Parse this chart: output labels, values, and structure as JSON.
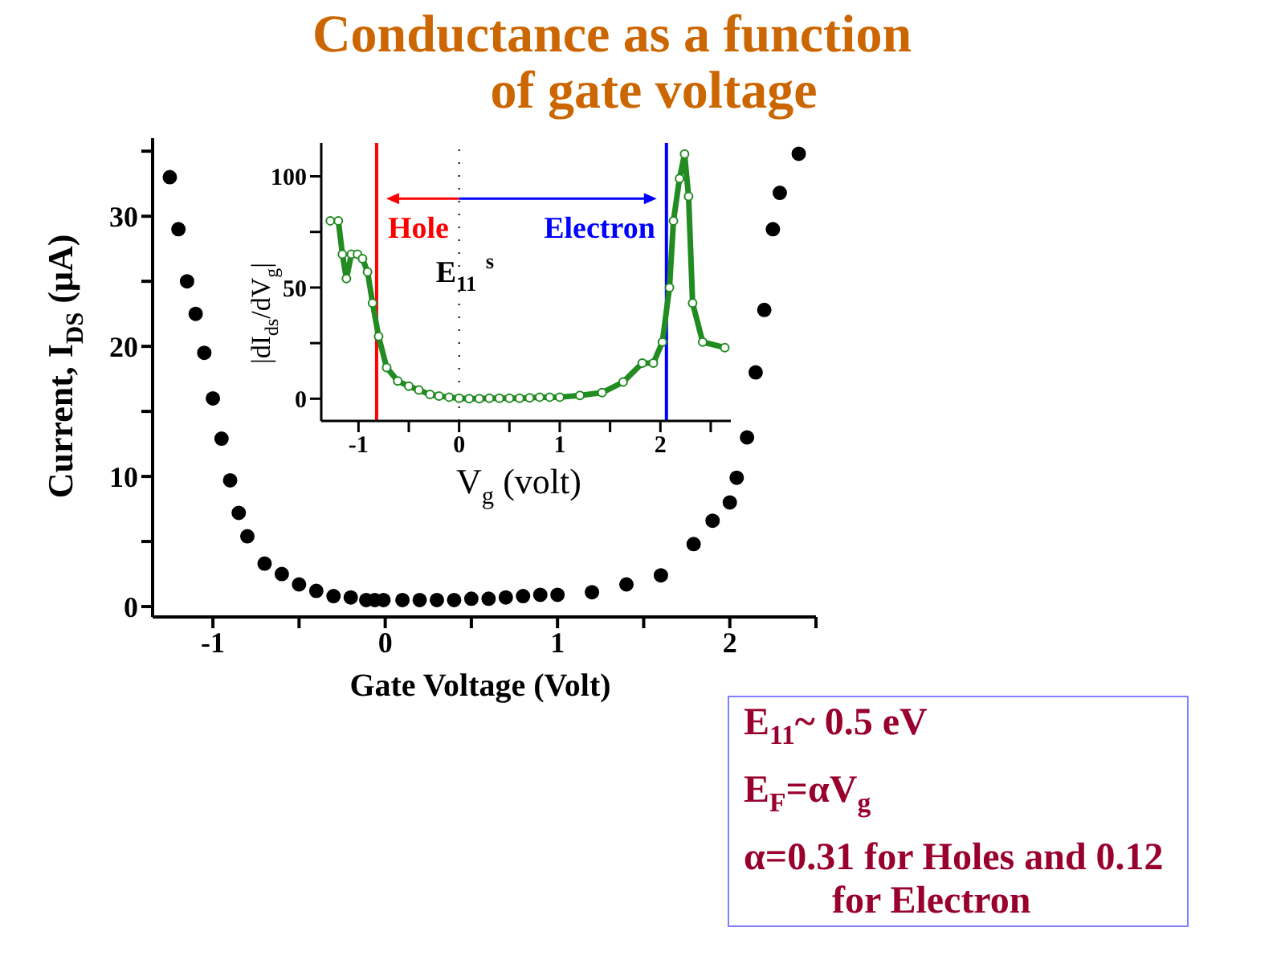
{
  "chart_data": [
    {
      "type": "scatter",
      "title": "Conductance as a function\nof gate voltage",
      "xlabel": "Gate Voltage (Volt)",
      "ylabel": "Current, I$_{DS}$ (μA)",
      "x": [
        -1.25,
        -1.2,
        -1.15,
        -1.1,
        -1.05,
        -1.0,
        -0.95,
        -0.9,
        -0.85,
        -0.8,
        -0.7,
        -0.6,
        -0.5,
        -0.4,
        -0.3,
        -0.2,
        -0.11,
        -0.06,
        -0.01,
        0.1,
        0.2,
        0.3,
        0.4,
        0.5,
        0.6,
        0.7,
        0.8,
        0.9,
        1.0,
        1.2,
        1.4,
        1.6,
        1.79,
        1.9,
        2.0,
        2.04,
        2.1,
        2.15,
        2.2,
        2.25,
        2.29,
        2.4
      ],
      "values": [
        33,
        29,
        25,
        22.5,
        19.5,
        16,
        12.9,
        9.7,
        7.2,
        5.4,
        3.3,
        2.5,
        1.7,
        1.2,
        0.8,
        0.7,
        0.5,
        0.5,
        0.5,
        0.5,
        0.5,
        0.5,
        0.5,
        0.6,
        0.6,
        0.7,
        0.8,
        0.9,
        0.9,
        1.1,
        1.7,
        2.4,
        4.8,
        6.6,
        8.0,
        9.9,
        13.0,
        18.0,
        22.8,
        29.0,
        31.8,
        34.8
      ],
      "color": "#000000",
      "marker": "circle",
      "xlim": [
        -1.35,
        2.5
      ],
      "ylim": [
        -0.8,
        36
      ],
      "xticks": [
        -1,
        {
          "value": -0.5,
          "label": null
        },
        0,
        {
          "value": 0.5,
          "label": null
        },
        1,
        {
          "value": 1.5,
          "label": null
        },
        2,
        {
          "value": 2.5,
          "label": null
        }
      ],
      "yticks": [
        0,
        {
          "value": 5,
          "label": null
        },
        10,
        {
          "value": 15,
          "label": null
        },
        20,
        {
          "value": 25,
          "label": null
        },
        30,
        {
          "value": 35,
          "label": null
        }
      ]
    },
    {
      "type": "line",
      "xlabel": "V$_{g}$ (volt)",
      "ylabel": "|dI$_{ds}$/dV$_{g}$|",
      "annotations": [
        "E$_{11}$$^{s}$"
      ],
      "x": [
        -1.28,
        -1.2,
        -1.16,
        -1.12,
        -1.07,
        -1.01,
        -0.96,
        -0.91,
        -0.86,
        -0.8,
        -0.72,
        -0.61,
        -0.5,
        -0.4,
        -0.29,
        -0.2,
        -0.1,
        0,
        0.1,
        0.2,
        0.3,
        0.4,
        0.5,
        0.6,
        0.7,
        0.8,
        0.9,
        1.0,
        1.2,
        1.42,
        1.63,
        1.82,
        1.93,
        2.02,
        2.09,
        2.13,
        2.19,
        2.24,
        2.28,
        2.32,
        2.42,
        2.64
      ],
      "values": [
        80,
        80,
        65,
        54,
        65,
        65,
        63,
        57,
        43,
        28,
        14,
        8,
        5.6,
        3.9,
        1.9,
        1.2,
        0.7,
        0.2,
        0,
        0,
        0.2,
        0.2,
        0.2,
        0.2,
        0.4,
        0.7,
        0.7,
        0.7,
        1.5,
        2.7,
        7.5,
        16,
        16,
        25.5,
        50,
        80,
        99,
        110,
        91,
        43,
        25.5,
        23
      ],
      "color": "#228b22",
      "marker": "circle",
      "xlim": [
        -1.37,
        2.7
      ],
      "ylim": [
        -10,
        115
      ],
      "xticks": [
        -1,
        {
          "value": -0.5,
          "label": null
        },
        0,
        {
          "value": 0.5,
          "label": null
        },
        1,
        {
          "value": 1.5,
          "label": null
        },
        2,
        {
          "value": 2.5,
          "label": null
        }
      ],
      "yticks": [
        0,
        {
          "value": 25,
          "label": null
        },
        50,
        {
          "value": 75,
          "label": null
        },
        100
      ],
      "ref_lines": [
        {
          "axis": "x",
          "value": -0.82,
          "label": "Hole",
          "color": "#ff0000"
        },
        {
          "axis": "x",
          "value": 0,
          "color": "#000000",
          "line_style": "dotted"
        },
        {
          "axis": "x",
          "value": 2.06,
          "label": "Electron",
          "color": "#0000ff"
        }
      ]
    },
    {
      "type": "other",
      "annotations": [
        "E$_{11}$~ 0.5 eV",
        "E$_{F}$=αV$_{g}$",
        "α=0.31 for Holes and 0.12 for Electron"
      ]
    }
  ]
}
